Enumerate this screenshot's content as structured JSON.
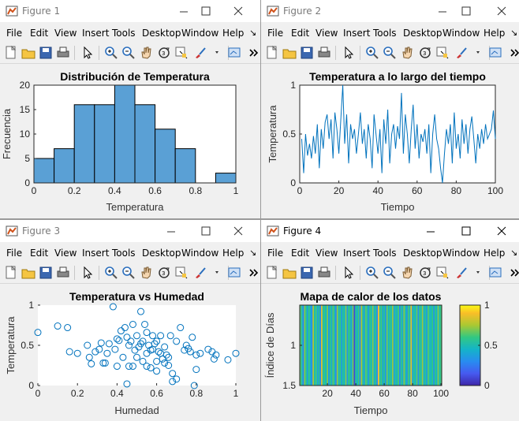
{
  "menu_items": [
    "File",
    "Edit",
    "View",
    "Insert",
    "Tools",
    "Desktop",
    "Window",
    "Help"
  ],
  "colors": {
    "accent": "#0072bd",
    "bar_fill": "#5aa0d5"
  },
  "windows": [
    {
      "title": "Figure 1",
      "chart_data": {
        "type": "bar",
        "title": "Distribución de Temperatura",
        "xlabel": "Temperatura",
        "ylabel": "Frecuencia",
        "bin_edges": [
          0,
          0.1,
          0.2,
          0.3,
          0.4,
          0.5,
          0.6,
          0.7,
          0.8,
          0.9,
          1.0
        ],
        "values": [
          5,
          7,
          16,
          16,
          20,
          16,
          11,
          7,
          0,
          2
        ],
        "xlim": [
          0,
          1
        ],
        "ylim": [
          0,
          20
        ],
        "xticks": [
          "0",
          "0.2",
          "0.4",
          "0.6",
          "0.8",
          "1"
        ],
        "yticks": [
          "0",
          "5",
          "10",
          "15",
          "20"
        ]
      }
    },
    {
      "title": "Figure 2",
      "chart_data": {
        "type": "line",
        "title": "Temperatura a lo largo del tiempo",
        "xlabel": "Tiempo",
        "ylabel": "Temperatura",
        "x_start": 1,
        "values": [
          0.45,
          0.1,
          0.5,
          0.28,
          0.4,
          0.25,
          0.48,
          0.3,
          0.6,
          0.15,
          0.55,
          0.35,
          0.62,
          0.7,
          0.45,
          0.65,
          0.25,
          0.72,
          0.55,
          0.3,
          0.65,
          1.0,
          0.4,
          0.7,
          0.2,
          0.6,
          0.45,
          0.55,
          0.3,
          0.5,
          0.72,
          0.4,
          0.55,
          0.25,
          0.6,
          0.45,
          0.15,
          0.7,
          0.5,
          0.3,
          0.55,
          0.1,
          0.65,
          0.4,
          0.75,
          0.2,
          0.5,
          0.6,
          0.35,
          0.58,
          0.45,
          0.92,
          0.3,
          0.7,
          0.5,
          0.2,
          0.55,
          0.8,
          0.35,
          0.6,
          0.25,
          0.5,
          0.42,
          0.55,
          0.3,
          0.6,
          0.1,
          0.5,
          0.7,
          0.45,
          0.35,
          0.15,
          0.0,
          0.3,
          0.55,
          0.4,
          0.6,
          0.2,
          0.72,
          0.35,
          0.5,
          0.25,
          0.65,
          0.4,
          0.6,
          0.3,
          0.55,
          0.68,
          0.45,
          0.2,
          0.5,
          0.35,
          0.55,
          0.4,
          0.6,
          0.45,
          0.5,
          0.55,
          0.74,
          0.45
        ],
        "xlim": [
          0,
          100
        ],
        "ylim": [
          0,
          1
        ],
        "xticks": [
          "0",
          "20",
          "40",
          "60",
          "80",
          "100"
        ],
        "yticks": [
          "0",
          "0.5",
          "1"
        ]
      }
    },
    {
      "title": "Figure 3",
      "chart_data": {
        "type": "scatter",
        "title": "Temperatura vs Humedad",
        "xlabel": "Humedad",
        "ylabel": "Temperatura",
        "points": [
          [
            0.0,
            0.66
          ],
          [
            0.1,
            0.74
          ],
          [
            0.15,
            0.72
          ],
          [
            0.16,
            0.42
          ],
          [
            0.2,
            0.4
          ],
          [
            0.25,
            0.5
          ],
          [
            0.26,
            0.35
          ],
          [
            0.27,
            0.27
          ],
          [
            0.29,
            0.42
          ],
          [
            0.31,
            0.45
          ],
          [
            0.32,
            0.53
          ],
          [
            0.33,
            0.28
          ],
          [
            0.34,
            0.28
          ],
          [
            0.35,
            0.4
          ],
          [
            0.36,
            0.52
          ],
          [
            0.38,
            0.98
          ],
          [
            0.39,
            0.45
          ],
          [
            0.4,
            0.24
          ],
          [
            0.4,
            0.58
          ],
          [
            0.41,
            0.56
          ],
          [
            0.42,
            0.68
          ],
          [
            0.43,
            0.35
          ],
          [
            0.44,
            0.72
          ],
          [
            0.45,
            0.6
          ],
          [
            0.46,
            0.24
          ],
          [
            0.46,
            0.5
          ],
          [
            0.47,
            0.55
          ],
          [
            0.48,
            0.24
          ],
          [
            0.48,
            0.76
          ],
          [
            0.49,
            0.44
          ],
          [
            0.5,
            0.35
          ],
          [
            0.5,
            0.62
          ],
          [
            0.51,
            0.48
          ],
          [
            0.52,
            0.92
          ],
          [
            0.52,
            0.52
          ],
          [
            0.53,
            0.3
          ],
          [
            0.53,
            0.55
          ],
          [
            0.54,
            0.76
          ],
          [
            0.55,
            0.4
          ],
          [
            0.55,
            0.66
          ],
          [
            0.56,
            0.5
          ],
          [
            0.57,
            0.44
          ],
          [
            0.57,
            0.22
          ],
          [
            0.58,
            0.45
          ],
          [
            0.58,
            0.62
          ],
          [
            0.59,
            0.52
          ],
          [
            0.6,
            0.3
          ],
          [
            0.6,
            0.55
          ],
          [
            0.61,
            0.42
          ],
          [
            0.62,
            0.4
          ],
          [
            0.62,
            0.62
          ],
          [
            0.63,
            0.33
          ],
          [
            0.64,
            0.48
          ],
          [
            0.64,
            0.28
          ],
          [
            0.65,
            0.38
          ],
          [
            0.66,
            0.25
          ],
          [
            0.66,
            0.35
          ],
          [
            0.67,
            0.62
          ],
          [
            0.68,
            0.15
          ],
          [
            0.7,
            0.55
          ],
          [
            0.72,
            0.72
          ],
          [
            0.74,
            0.44
          ],
          [
            0.75,
            0.5
          ],
          [
            0.76,
            0.46
          ],
          [
            0.77,
            0.42
          ],
          [
            0.78,
            0.6
          ],
          [
            0.79,
            0.0
          ],
          [
            0.8,
            0.38
          ],
          [
            0.8,
            0.2
          ],
          [
            0.82,
            0.4
          ],
          [
            0.86,
            0.45
          ],
          [
            0.88,
            0.42
          ],
          [
            0.89,
            0.33
          ],
          [
            0.9,
            0.38
          ],
          [
            0.96,
            0.32
          ],
          [
            1.0,
            0.4
          ],
          [
            0.45,
            0.02
          ],
          [
            0.68,
            0.05
          ],
          [
            0.7,
            0.08
          ],
          [
            0.55,
            0.24
          ],
          [
            0.6,
            0.18
          ]
        ],
        "xlim": [
          0,
          1
        ],
        "ylim": [
          0,
          1
        ],
        "xticks": [
          "0",
          "0.2",
          "0.4",
          "0.6",
          "0.8",
          "1"
        ],
        "yticks": [
          "0",
          "0.5",
          "1"
        ]
      }
    },
    {
      "title": "Figure 4",
      "chart_data": {
        "type": "heatmap",
        "title": "Mapa de calor de los datos",
        "xlabel": "Tiempo",
        "ylabel": "Índice de Días",
        "values": [
          0.65,
          0.5,
          0.3,
          0.7,
          0.55,
          0.4,
          0.6,
          0.45,
          0.3,
          0.75,
          0.5,
          0.62,
          0.4,
          0.55,
          0.3,
          0.85,
          0.5,
          0.6,
          0.45,
          0.7,
          0.35,
          0.58,
          0.42,
          0.65,
          0.5,
          0.3,
          0.72,
          0.48,
          0.6,
          0.38,
          0.55,
          0.45,
          0.7,
          0.35,
          0.6,
          0.52,
          0.4,
          0.68,
          0.1,
          0.55,
          0.45,
          0.62,
          0.3,
          0.75,
          0.5,
          0.4,
          0.65,
          0.55,
          0.35,
          0.6,
          0.48,
          0.7,
          0.42,
          0.58,
          0.3,
          0.9,
          0.5,
          0.62,
          0.4,
          0.55,
          0.35,
          0.68,
          0.45,
          0.6,
          0.5,
          0.72,
          0.38,
          0.55,
          0.46,
          0.63,
          0.3,
          0.58,
          0.42,
          0.7,
          0.5,
          0.35,
          0.62,
          0.48,
          0.85,
          0.4,
          0.56,
          0.45,
          0.66,
          0.32,
          0.6,
          0.5,
          0.72,
          0.42,
          0.55,
          0.38,
          0.64,
          0.5,
          0.46,
          0.6,
          0.35,
          0.58,
          0.44,
          0.7,
          0.5,
          0.62
        ],
        "xlim": [
          0.5,
          100.5
        ],
        "ylim": [
          0.5,
          1.5
        ],
        "xticks": [
          "20",
          "40",
          "60",
          "80",
          "100"
        ],
        "yticks": [
          "1",
          "1.5"
        ],
        "colorbar": {
          "min": 0,
          "max": 1,
          "ticks": [
            "0",
            "0.5",
            "1"
          ]
        }
      }
    }
  ]
}
